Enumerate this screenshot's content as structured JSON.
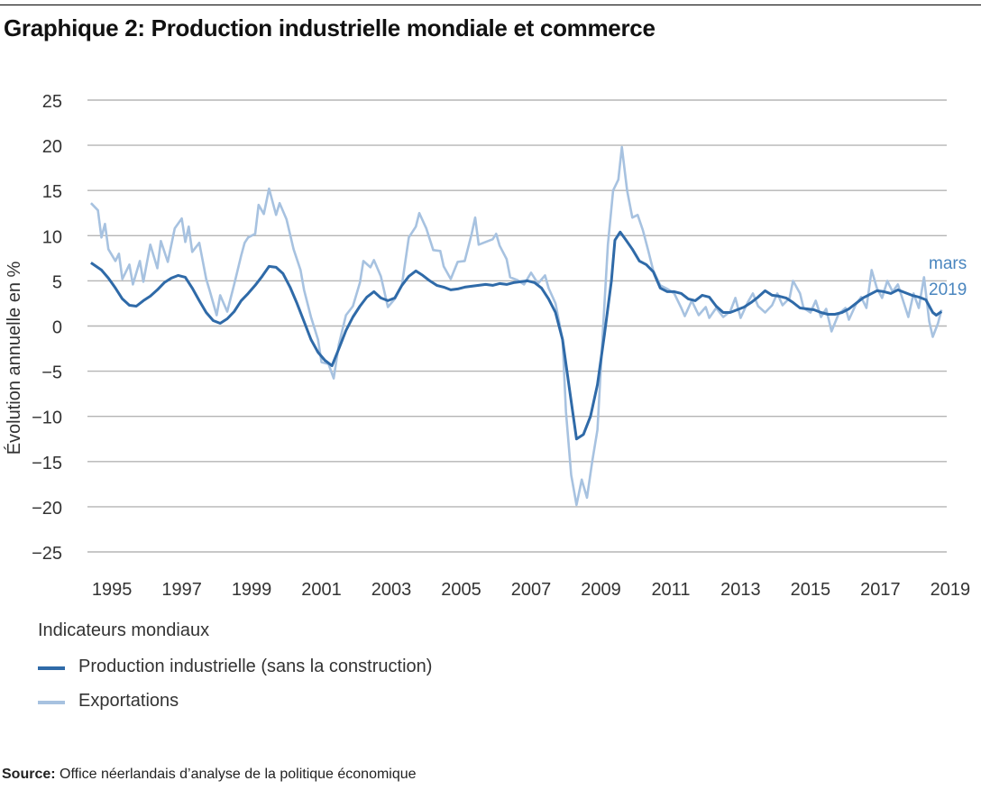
{
  "title": "Graphique 2: Production industrielle mondiale et commerce",
  "source": {
    "label": "Source:",
    "text": "Office néerlandais d’analyse de la politique économique"
  },
  "legend": {
    "title": "Indicateurs mondiaux",
    "items": [
      {
        "label": "Production industrielle (sans la construction)",
        "color": "#2f6aa8"
      },
      {
        "label": "Exportations",
        "color": "#a7c2e0"
      }
    ]
  },
  "annotation": {
    "line1": "mars",
    "line2": "2019",
    "color": "#4a86bf"
  },
  "chart_data": {
    "type": "line",
    "ylabel": "Évolution annuelle en %",
    "xlabel": "",
    "ylim": [
      -25,
      25
    ],
    "yticks": [
      25,
      20,
      15,
      10,
      5,
      0,
      -5,
      -10,
      -15,
      -20,
      -25
    ],
    "ytick_labels": [
      "25",
      "20",
      "15",
      "10",
      "5",
      "0",
      "−5",
      "−10",
      "−15",
      "−20",
      "−25"
    ],
    "xlim": [
      1994.8,
      2019.4
    ],
    "xticks": [
      "1995",
      "1997",
      "1999",
      "2001",
      "2003",
      "2005",
      "2007",
      "2009",
      "2011",
      "2013",
      "2015",
      "2017",
      "2019"
    ],
    "grid": true,
    "series": [
      {
        "name": "Production industrielle (sans la construction)",
        "color": "#2f6aa8",
        "points": [
          [
            1994.9,
            7.0
          ],
          [
            1995.2,
            6.2
          ],
          [
            1995.4,
            5.3
          ],
          [
            1995.6,
            4.2
          ],
          [
            1995.8,
            3.0
          ],
          [
            1996.0,
            2.3
          ],
          [
            1996.2,
            2.2
          ],
          [
            1996.4,
            2.8
          ],
          [
            1996.6,
            3.3
          ],
          [
            1996.8,
            4.0
          ],
          [
            1997.0,
            4.8
          ],
          [
            1997.2,
            5.3
          ],
          [
            1997.4,
            5.6
          ],
          [
            1997.6,
            5.4
          ],
          [
            1997.8,
            4.2
          ],
          [
            1998.0,
            2.8
          ],
          [
            1998.2,
            1.5
          ],
          [
            1998.4,
            0.6
          ],
          [
            1998.6,
            0.3
          ],
          [
            1998.8,
            0.8
          ],
          [
            1999.0,
            1.6
          ],
          [
            1999.2,
            2.8
          ],
          [
            1999.4,
            3.6
          ],
          [
            1999.6,
            4.5
          ],
          [
            1999.8,
            5.5
          ],
          [
            2000.0,
            6.6
          ],
          [
            2000.2,
            6.5
          ],
          [
            2000.4,
            5.8
          ],
          [
            2000.6,
            4.3
          ],
          [
            2000.8,
            2.5
          ],
          [
            2001.0,
            0.5
          ],
          [
            2001.2,
            -1.5
          ],
          [
            2001.4,
            -2.9
          ],
          [
            2001.6,
            -3.8
          ],
          [
            2001.8,
            -4.4
          ],
          [
            2002.0,
            -2.5
          ],
          [
            2002.2,
            -0.5
          ],
          [
            2002.4,
            1.0
          ],
          [
            2002.6,
            2.2
          ],
          [
            2002.8,
            3.2
          ],
          [
            2003.0,
            3.8
          ],
          [
            2003.2,
            3.1
          ],
          [
            2003.4,
            2.8
          ],
          [
            2003.6,
            3.1
          ],
          [
            2003.8,
            4.5
          ],
          [
            2004.0,
            5.5
          ],
          [
            2004.2,
            6.1
          ],
          [
            2004.4,
            5.6
          ],
          [
            2004.6,
            5.0
          ],
          [
            2004.8,
            4.5
          ],
          [
            2005.0,
            4.3
          ],
          [
            2005.2,
            4.0
          ],
          [
            2005.4,
            4.1
          ],
          [
            2005.6,
            4.3
          ],
          [
            2005.8,
            4.4
          ],
          [
            2006.0,
            4.5
          ],
          [
            2006.2,
            4.6
          ],
          [
            2006.4,
            4.5
          ],
          [
            2006.6,
            4.7
          ],
          [
            2006.8,
            4.6
          ],
          [
            2007.0,
            4.8
          ],
          [
            2007.2,
            4.9
          ],
          [
            2007.4,
            5.0
          ],
          [
            2007.6,
            4.8
          ],
          [
            2007.8,
            4.2
          ],
          [
            2008.0,
            3.0
          ],
          [
            2008.2,
            1.5
          ],
          [
            2008.4,
            -1.5
          ],
          [
            2008.6,
            -7.0
          ],
          [
            2008.8,
            -12.5
          ],
          [
            2009.0,
            -12.0
          ],
          [
            2009.2,
            -10.0
          ],
          [
            2009.4,
            -6.5
          ],
          [
            2009.6,
            -1.0
          ],
          [
            2009.8,
            5.0
          ],
          [
            2009.9,
            9.5
          ],
          [
            2010.05,
            10.4
          ],
          [
            2010.2,
            9.6
          ],
          [
            2010.4,
            8.5
          ],
          [
            2010.6,
            7.2
          ],
          [
            2010.8,
            6.8
          ],
          [
            2011.0,
            6.0
          ],
          [
            2011.2,
            4.2
          ],
          [
            2011.4,
            3.8
          ],
          [
            2011.6,
            3.8
          ],
          [
            2011.8,
            3.6
          ],
          [
            2012.0,
            3.0
          ],
          [
            2012.2,
            2.8
          ],
          [
            2012.4,
            3.4
          ],
          [
            2012.6,
            3.2
          ],
          [
            2012.8,
            2.2
          ],
          [
            2013.0,
            1.5
          ],
          [
            2013.2,
            1.5
          ],
          [
            2013.4,
            1.8
          ],
          [
            2013.6,
            2.1
          ],
          [
            2013.8,
            2.6
          ],
          [
            2014.0,
            3.2
          ],
          [
            2014.2,
            3.9
          ],
          [
            2014.4,
            3.4
          ],
          [
            2014.6,
            3.3
          ],
          [
            2014.8,
            3.1
          ],
          [
            2015.0,
            2.6
          ],
          [
            2015.2,
            2.0
          ],
          [
            2015.4,
            1.9
          ],
          [
            2015.6,
            1.8
          ],
          [
            2015.8,
            1.5
          ],
          [
            2016.0,
            1.3
          ],
          [
            2016.2,
            1.3
          ],
          [
            2016.4,
            1.5
          ],
          [
            2016.6,
            1.9
          ],
          [
            2016.8,
            2.5
          ],
          [
            2017.0,
            3.1
          ],
          [
            2017.2,
            3.5
          ],
          [
            2017.4,
            3.9
          ],
          [
            2017.6,
            3.8
          ],
          [
            2017.8,
            3.6
          ],
          [
            2018.0,
            4.0
          ],
          [
            2018.2,
            3.7
          ],
          [
            2018.4,
            3.4
          ],
          [
            2018.6,
            3.2
          ],
          [
            2018.8,
            2.9
          ],
          [
            2019.0,
            1.5
          ],
          [
            2019.1,
            1.2
          ],
          [
            2019.25,
            1.6
          ]
        ]
      },
      {
        "name": "Exportations",
        "color": "#a7c2e0",
        "points": [
          [
            1994.9,
            13.6
          ],
          [
            1995.1,
            12.8
          ],
          [
            1995.2,
            9.8
          ],
          [
            1995.3,
            11.3
          ],
          [
            1995.4,
            8.5
          ],
          [
            1995.6,
            7.2
          ],
          [
            1995.7,
            8.0
          ],
          [
            1995.8,
            5.2
          ],
          [
            1996.0,
            6.8
          ],
          [
            1996.1,
            4.6
          ],
          [
            1996.3,
            7.2
          ],
          [
            1996.4,
            4.9
          ],
          [
            1996.6,
            9.0
          ],
          [
            1996.8,
            6.4
          ],
          [
            1996.9,
            9.4
          ],
          [
            1997.1,
            7.1
          ],
          [
            1997.3,
            10.8
          ],
          [
            1997.5,
            11.9
          ],
          [
            1997.6,
            9.3
          ],
          [
            1997.7,
            11.0
          ],
          [
            1997.8,
            8.2
          ],
          [
            1998.0,
            9.2
          ],
          [
            1998.2,
            5.2
          ],
          [
            1998.3,
            3.9
          ],
          [
            1998.5,
            1.2
          ],
          [
            1998.6,
            3.4
          ],
          [
            1998.8,
            1.6
          ],
          [
            1999.0,
            4.6
          ],
          [
            1999.2,
            7.8
          ],
          [
            1999.3,
            9.2
          ],
          [
            1999.4,
            9.8
          ],
          [
            1999.6,
            10.2
          ],
          [
            1999.7,
            13.4
          ],
          [
            1999.85,
            12.4
          ],
          [
            2000.0,
            15.2
          ],
          [
            2000.2,
            12.3
          ],
          [
            2000.3,
            13.6
          ],
          [
            2000.5,
            11.8
          ],
          [
            2000.7,
            8.5
          ],
          [
            2000.9,
            6.2
          ],
          [
            2001.0,
            4.0
          ],
          [
            2001.2,
            1.0
          ],
          [
            2001.4,
            -1.5
          ],
          [
            2001.5,
            -4.0
          ],
          [
            2001.7,
            -4.2
          ],
          [
            2001.85,
            -5.8
          ],
          [
            2002.0,
            -2.0
          ],
          [
            2002.2,
            1.2
          ],
          [
            2002.4,
            2.2
          ],
          [
            2002.6,
            4.8
          ],
          [
            2002.7,
            7.2
          ],
          [
            2002.9,
            6.5
          ],
          [
            2003.0,
            7.3
          ],
          [
            2003.2,
            5.5
          ],
          [
            2003.4,
            2.1
          ],
          [
            2003.6,
            3.0
          ],
          [
            2003.8,
            4.5
          ],
          [
            2004.0,
            9.8
          ],
          [
            2004.2,
            11.0
          ],
          [
            2004.3,
            12.5
          ],
          [
            2004.5,
            10.8
          ],
          [
            2004.7,
            8.4
          ],
          [
            2004.9,
            8.3
          ],
          [
            2005.0,
            6.6
          ],
          [
            2005.2,
            5.2
          ],
          [
            2005.4,
            7.1
          ],
          [
            2005.6,
            7.2
          ],
          [
            2005.8,
            10.2
          ],
          [
            2005.9,
            12.0
          ],
          [
            2006.0,
            9.0
          ],
          [
            2006.2,
            9.3
          ],
          [
            2006.4,
            9.6
          ],
          [
            2006.5,
            10.2
          ],
          [
            2006.6,
            8.9
          ],
          [
            2006.8,
            7.4
          ],
          [
            2006.9,
            5.4
          ],
          [
            2007.1,
            5.1
          ],
          [
            2007.3,
            4.6
          ],
          [
            2007.5,
            5.9
          ],
          [
            2007.7,
            4.7
          ],
          [
            2007.9,
            5.6
          ],
          [
            2008.0,
            4.2
          ],
          [
            2008.2,
            2.5
          ],
          [
            2008.4,
            -1.5
          ],
          [
            2008.5,
            -9.5
          ],
          [
            2008.65,
            -16.5
          ],
          [
            2008.8,
            -19.8
          ],
          [
            2008.95,
            -17.0
          ],
          [
            2009.1,
            -19.0
          ],
          [
            2009.25,
            -15.0
          ],
          [
            2009.4,
            -11.5
          ],
          [
            2009.55,
            -1.0
          ],
          [
            2009.7,
            9.0
          ],
          [
            2009.85,
            15.0
          ],
          [
            2010.0,
            16.2
          ],
          [
            2010.1,
            19.8
          ],
          [
            2010.25,
            15.0
          ],
          [
            2010.4,
            12.0
          ],
          [
            2010.55,
            12.3
          ],
          [
            2010.7,
            10.6
          ],
          [
            2010.85,
            8.4
          ],
          [
            2011.0,
            6.1
          ],
          [
            2011.2,
            4.5
          ],
          [
            2011.4,
            4.1
          ],
          [
            2011.6,
            3.6
          ],
          [
            2011.8,
            2.0
          ],
          [
            2011.9,
            1.1
          ],
          [
            2012.1,
            2.8
          ],
          [
            2012.3,
            1.2
          ],
          [
            2012.5,
            2.1
          ],
          [
            2012.6,
            0.9
          ],
          [
            2012.8,
            2.0
          ],
          [
            2013.0,
            1.0
          ],
          [
            2013.2,
            1.6
          ],
          [
            2013.35,
            3.1
          ],
          [
            2013.5,
            0.9
          ],
          [
            2013.7,
            2.6
          ],
          [
            2013.85,
            3.6
          ],
          [
            2014.0,
            2.2
          ],
          [
            2014.2,
            1.5
          ],
          [
            2014.4,
            2.3
          ],
          [
            2014.55,
            3.6
          ],
          [
            2014.7,
            2.3
          ],
          [
            2014.9,
            3.1
          ],
          [
            2015.0,
            5.0
          ],
          [
            2015.2,
            3.6
          ],
          [
            2015.3,
            2.0
          ],
          [
            2015.5,
            1.5
          ],
          [
            2015.65,
            2.8
          ],
          [
            2015.8,
            1.0
          ],
          [
            2015.95,
            1.9
          ],
          [
            2016.1,
            -0.6
          ],
          [
            2016.3,
            1.3
          ],
          [
            2016.5,
            2.0
          ],
          [
            2016.6,
            0.7
          ],
          [
            2016.8,
            2.4
          ],
          [
            2016.95,
            3.2
          ],
          [
            2017.1,
            2.0
          ],
          [
            2017.25,
            6.2
          ],
          [
            2017.4,
            4.2
          ],
          [
            2017.55,
            3.1
          ],
          [
            2017.7,
            5.0
          ],
          [
            2017.85,
            3.8
          ],
          [
            2018.0,
            4.6
          ],
          [
            2018.15,
            2.8
          ],
          [
            2018.3,
            1.0
          ],
          [
            2018.45,
            3.6
          ],
          [
            2018.6,
            2.0
          ],
          [
            2018.75,
            5.4
          ],
          [
            2018.9,
            0.5
          ],
          [
            2019.0,
            -1.2
          ],
          [
            2019.15,
            0.3
          ],
          [
            2019.25,
            1.8
          ]
        ]
      }
    ]
  }
}
